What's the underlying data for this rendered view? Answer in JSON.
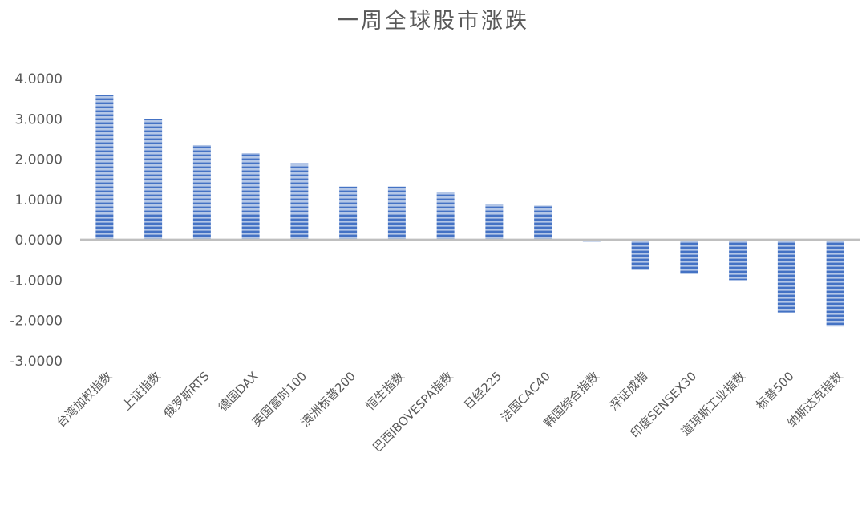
{
  "chart_data": {
    "type": "bar",
    "title": "一周全球股市涨跌",
    "xlabel": "",
    "ylabel": "",
    "categories": [
      "台湾加权指数",
      "上证指数",
      "俄罗斯RTS",
      "德国DAX",
      "英国富时100",
      "澳洲标普200",
      "恒生指数",
      "巴西IBOVESPA指数",
      "日经225",
      "法国CAC40",
      "韩国综合指数",
      "深证成指",
      "印度SENSEX30",
      "道琼斯工业指数",
      "标普500",
      "纳斯达克指数"
    ],
    "values": [
      3.6,
      3.0,
      2.35,
      2.15,
      1.9,
      1.32,
      1.32,
      1.18,
      0.88,
      0.85,
      -0.05,
      -0.75,
      -0.85,
      -1.0,
      -1.8,
      -2.15
    ],
    "ylim": [
      -3,
      4
    ],
    "yticks": [
      "4.0000",
      "3.0000",
      "2.0000",
      "1.0000",
      "0.0000",
      "-1.0000",
      "-2.0000",
      "-3.0000"
    ],
    "ytick_values": [
      4,
      3,
      2,
      1,
      0,
      -1,
      -2,
      -3
    ],
    "grid": false,
    "legend": "none",
    "bar_color": "#4472C4",
    "bar_stripe_color": "#B4C7E7",
    "axis_color": "#BFBFBF"
  }
}
